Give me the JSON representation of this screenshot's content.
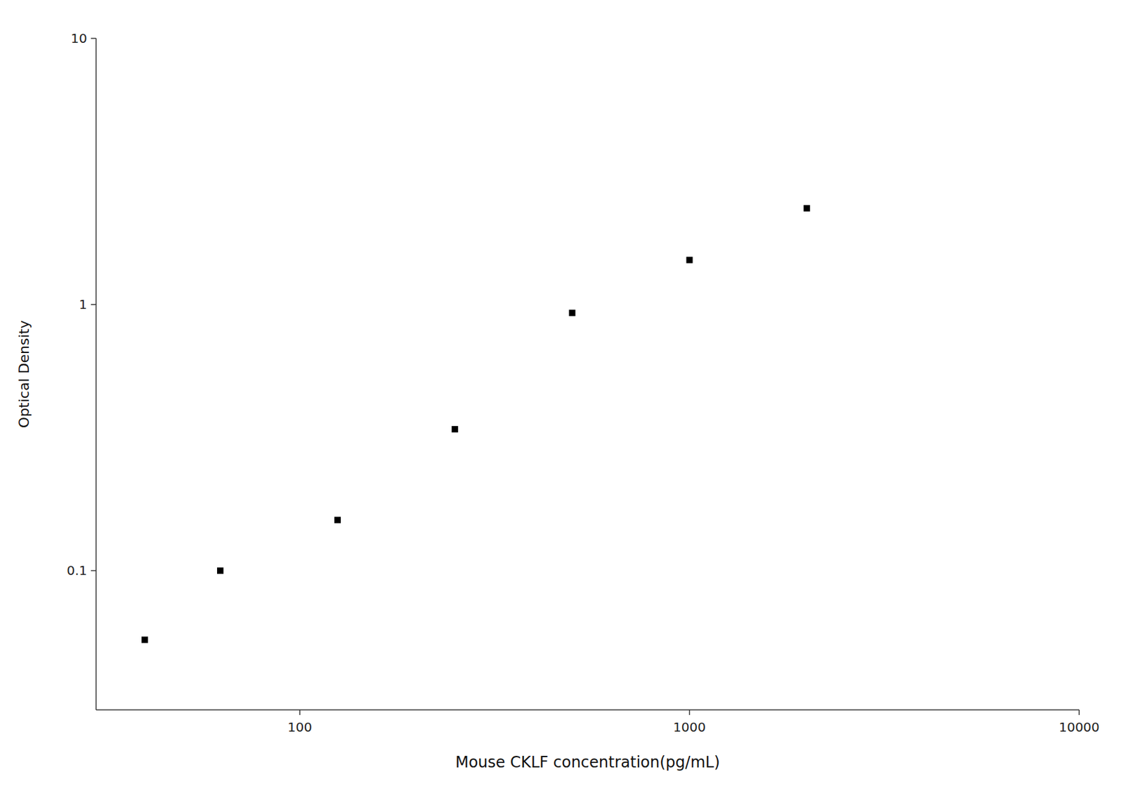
{
  "chart_data": {
    "type": "scatter",
    "xlabel": "Mouse CKLF concentration(pg/mL)",
    "ylabel": "Optical Density",
    "x": [
      40,
      62.5,
      125,
      250,
      500,
      1000,
      2000
    ],
    "values": [
      0.055,
      0.1,
      0.155,
      0.34,
      0.93,
      1.47,
      2.3
    ],
    "xlim": [
      30,
      10000
    ],
    "ylim": [
      0.03,
      10
    ],
    "xticks": [
      100,
      1000,
      10000
    ],
    "yticks": [
      0.1,
      1,
      10
    ],
    "log": true,
    "grid": false,
    "color": "black",
    "marker": "square"
  }
}
